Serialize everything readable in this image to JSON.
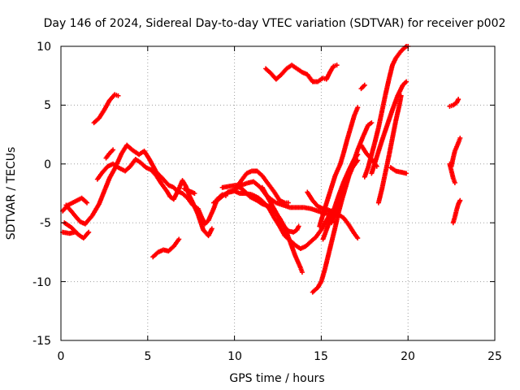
{
  "chart_data": {
    "type": "scatter",
    "title": "Day 146 of 2024, Sidereal Day-to-day VTEC variation (SDTVAR) for receiver p002",
    "xlabel": "GPS time / hours",
    "ylabel": "SDTVAR / TECUs",
    "xlim": [
      0,
      25
    ],
    "ylim": [
      -15,
      10
    ],
    "xticks": [
      "0",
      "5",
      "10",
      "15",
      "20",
      "25"
    ],
    "yticks": [
      "-15",
      "-10",
      "-5",
      "0",
      "5",
      "10"
    ],
    "grid": true,
    "marker": "+",
    "color": "#ff0000",
    "series": [
      {
        "values": [
          [
            0.1,
            -4.0
          ],
          [
            0.4,
            -3.5
          ],
          [
            0.8,
            -3.2
          ],
          [
            1.2,
            -2.9
          ],
          [
            1.5,
            -3.3
          ]
        ]
      },
      {
        "values": [
          [
            0.2,
            -5.0
          ],
          [
            0.6,
            -5.4
          ],
          [
            1.0,
            -6.0
          ],
          [
            1.3,
            -6.3
          ],
          [
            1.6,
            -5.8
          ]
        ]
      },
      {
        "values": [
          [
            0.1,
            -5.8
          ],
          [
            0.5,
            -5.9
          ],
          [
            0.8,
            -5.8
          ]
        ]
      },
      {
        "values": [
          [
            0.3,
            -3.5
          ],
          [
            0.7,
            -4.2
          ],
          [
            1.1,
            -4.9
          ],
          [
            1.4,
            -5.1
          ],
          [
            1.8,
            -4.4
          ],
          [
            2.2,
            -3.4
          ],
          [
            2.5,
            -2.3
          ],
          [
            2.8,
            -1.2
          ],
          [
            3.1,
            -0.4
          ],
          [
            3.5,
            0.9
          ],
          [
            3.8,
            1.6
          ],
          [
            4.1,
            1.2
          ],
          [
            4.5,
            0.8
          ],
          [
            4.8,
            1.1
          ],
          [
            5.1,
            0.4
          ],
          [
            5.5,
            -0.7
          ],
          [
            5.9,
            -1.3
          ],
          [
            6.2,
            -1.8
          ],
          [
            6.5,
            -2.0
          ],
          [
            6.7,
            -2.3
          ],
          [
            7.0,
            -2.5
          ],
          [
            7.3,
            -2.9
          ],
          [
            7.6,
            -3.5
          ],
          [
            7.9,
            -3.8
          ],
          [
            8.1,
            -4.5
          ],
          [
            8.3,
            -5.1
          ],
          [
            8.5,
            -4.8
          ],
          [
            8.8,
            -3.8
          ],
          [
            9.0,
            -3.0
          ],
          [
            9.3,
            -2.6
          ],
          [
            9.5,
            -2.7
          ]
        ]
      },
      {
        "values": [
          [
            2.1,
            -1.3
          ],
          [
            2.4,
            -0.7
          ],
          [
            2.7,
            -0.2
          ],
          [
            3.0,
            0.0
          ],
          [
            3.3,
            -0.3
          ],
          [
            3.7,
            -0.6
          ],
          [
            4.0,
            -0.2
          ],
          [
            4.3,
            0.4
          ],
          [
            4.6,
            0.1
          ],
          [
            4.9,
            -0.3
          ],
          [
            5.2,
            -0.5
          ],
          [
            5.5,
            -1.0
          ],
          [
            5.8,
            -1.7
          ],
          [
            6.1,
            -2.3
          ],
          [
            6.3,
            -2.8
          ],
          [
            6.5,
            -3.0
          ],
          [
            6.8,
            -2.1
          ],
          [
            7.0,
            -1.4
          ],
          [
            7.2,
            -1.9
          ],
          [
            7.4,
            -2.7
          ],
          [
            7.6,
            -3.3
          ],
          [
            7.9,
            -4.3
          ],
          [
            8.2,
            -5.6
          ],
          [
            8.5,
            -6.1
          ],
          [
            8.7,
            -5.5
          ]
        ]
      },
      {
        "values": [
          [
            2.6,
            0.5
          ],
          [
            2.8,
            0.9
          ],
          [
            3.0,
            1.2
          ]
        ]
      },
      {
        "values": [
          [
            1.9,
            3.5
          ],
          [
            2.2,
            3.9
          ],
          [
            2.5,
            4.6
          ],
          [
            2.8,
            5.4
          ],
          [
            3.1,
            5.9
          ],
          [
            3.3,
            5.8
          ]
        ]
      },
      {
        "values": [
          [
            5.3,
            -7.9
          ],
          [
            5.6,
            -7.5
          ],
          [
            5.9,
            -7.3
          ],
          [
            6.2,
            -7.4
          ],
          [
            6.5,
            -7.0
          ],
          [
            6.8,
            -6.4
          ]
        ]
      },
      {
        "values": [
          [
            7.1,
            -2.1
          ],
          [
            7.4,
            -2.3
          ],
          [
            7.7,
            -2.5
          ]
        ]
      },
      {
        "values": [
          [
            8.8,
            -3.3
          ],
          [
            9.1,
            -3.0
          ],
          [
            9.4,
            -2.6
          ],
          [
            9.7,
            -2.4
          ],
          [
            10.0,
            -2.3
          ],
          [
            10.3,
            -2.5
          ],
          [
            10.6,
            -2.5
          ],
          [
            11.0,
            -2.6
          ],
          [
            11.4,
            -2.9
          ],
          [
            11.7,
            -3.3
          ],
          [
            12.0,
            -3.8
          ],
          [
            12.3,
            -4.6
          ],
          [
            12.6,
            -5.3
          ],
          [
            12.9,
            -6.1
          ],
          [
            13.2,
            -6.5
          ],
          [
            13.5,
            -6.9
          ],
          [
            13.8,
            -7.2
          ],
          [
            14.1,
            -7.0
          ],
          [
            14.4,
            -6.6
          ],
          [
            14.7,
            -6.2
          ],
          [
            15.0,
            -5.6
          ],
          [
            15.3,
            -4.8
          ],
          [
            15.6,
            -4.0
          ]
        ]
      },
      {
        "values": [
          [
            9.3,
            -2.0
          ],
          [
            9.7,
            -1.9
          ],
          [
            10.1,
            -1.8
          ],
          [
            10.5,
            -2.2
          ],
          [
            10.9,
            -2.8
          ],
          [
            11.3,
            -3.1
          ],
          [
            11.6,
            -3.4
          ],
          [
            12.0,
            -3.6
          ],
          [
            12.3,
            -4.0
          ],
          [
            12.6,
            -4.6
          ],
          [
            12.9,
            -5.4
          ],
          [
            13.2,
            -6.6
          ],
          [
            13.5,
            -7.8
          ],
          [
            13.8,
            -8.8
          ],
          [
            13.9,
            -9.2
          ]
        ]
      },
      {
        "values": [
          [
            9.6,
            -2.4
          ],
          [
            10.0,
            -2.2
          ],
          [
            10.4,
            -1.8
          ],
          [
            10.8,
            -1.6
          ],
          [
            11.1,
            -1.5
          ],
          [
            11.5,
            -2.0
          ],
          [
            11.8,
            -2.6
          ],
          [
            12.1,
            -3.0
          ],
          [
            12.4,
            -3.3
          ],
          [
            12.8,
            -3.5
          ],
          [
            13.2,
            -3.7
          ],
          [
            13.6,
            -3.7
          ],
          [
            14.0,
            -3.7
          ],
          [
            14.4,
            -3.8
          ],
          [
            14.8,
            -4.0
          ],
          [
            15.2,
            -4.2
          ],
          [
            15.5,
            -4.2
          ],
          [
            15.8,
            -4.0
          ]
        ]
      },
      {
        "values": [
          [
            10.1,
            -2.0
          ],
          [
            10.4,
            -1.4
          ],
          [
            10.7,
            -0.8
          ],
          [
            11.0,
            -0.6
          ],
          [
            11.3,
            -0.6
          ],
          [
            11.6,
            -1.0
          ],
          [
            12.0,
            -1.8
          ],
          [
            12.3,
            -2.4
          ],
          [
            12.6,
            -3.1
          ],
          [
            12.9,
            -3.3
          ],
          [
            13.1,
            -3.3
          ]
        ]
      },
      {
        "values": [
          [
            11.6,
            -2.0
          ],
          [
            11.9,
            -2.8
          ],
          [
            12.2,
            -3.6
          ],
          [
            12.5,
            -4.4
          ],
          [
            12.8,
            -5.2
          ],
          [
            13.1,
            -5.7
          ],
          [
            13.4,
            -5.8
          ],
          [
            13.6,
            -5.6
          ],
          [
            13.7,
            -5.3
          ]
        ]
      },
      {
        "values": [
          [
            14.2,
            -2.4
          ],
          [
            14.5,
            -3.1
          ],
          [
            14.8,
            -3.6
          ],
          [
            15.1,
            -3.8
          ],
          [
            15.4,
            -3.9
          ],
          [
            15.7,
            -4.1
          ],
          [
            16.0,
            -4.3
          ],
          [
            16.3,
            -4.6
          ],
          [
            16.6,
            -5.2
          ],
          [
            16.9,
            -5.9
          ],
          [
            17.1,
            -6.3
          ]
        ]
      },
      {
        "values": [
          [
            11.8,
            8.1
          ],
          [
            12.1,
            7.7
          ],
          [
            12.4,
            7.2
          ],
          [
            12.7,
            7.6
          ],
          [
            13.0,
            8.1
          ],
          [
            13.3,
            8.4
          ],
          [
            13.6,
            8.1
          ],
          [
            13.9,
            7.8
          ],
          [
            14.2,
            7.6
          ],
          [
            14.5,
            7.0
          ],
          [
            14.8,
            7.0
          ],
          [
            15.1,
            7.3
          ],
          [
            15.3,
            7.2
          ],
          [
            15.5,
            7.8
          ],
          [
            15.7,
            8.3
          ],
          [
            15.9,
            8.4
          ]
        ]
      },
      {
        "values": [
          [
            14.5,
            -10.9
          ],
          [
            14.8,
            -10.5
          ],
          [
            15.0,
            -10.0
          ],
          [
            15.2,
            -9.0
          ],
          [
            15.4,
            -7.8
          ],
          [
            15.6,
            -6.6
          ],
          [
            15.8,
            -5.4
          ],
          [
            16.0,
            -4.1
          ],
          [
            16.2,
            -3.0
          ],
          [
            16.4,
            -2.0
          ],
          [
            16.6,
            -1.0
          ],
          [
            16.8,
            -0.3
          ],
          [
            17.1,
            0.3
          ]
        ]
      },
      {
        "values": [
          [
            14.9,
            -5.3
          ],
          [
            15.2,
            -3.8
          ],
          [
            15.5,
            -2.4
          ],
          [
            15.8,
            -1.0
          ],
          [
            16.1,
            0.0
          ],
          [
            16.3,
            1.0
          ],
          [
            16.5,
            2.1
          ],
          [
            16.7,
            3.1
          ],
          [
            16.9,
            4.1
          ],
          [
            17.1,
            4.8
          ]
        ]
      },
      {
        "values": [
          [
            15.1,
            -6.4
          ],
          [
            15.4,
            -5.2
          ],
          [
            15.7,
            -4.0
          ],
          [
            16.0,
            -2.7
          ],
          [
            16.3,
            -1.5
          ],
          [
            16.6,
            -0.5
          ],
          [
            16.9,
            0.4
          ],
          [
            17.1,
            0.8
          ]
        ]
      },
      {
        "values": [
          [
            15.6,
            -5.0
          ],
          [
            15.9,
            -3.8
          ],
          [
            16.2,
            -2.6
          ],
          [
            16.5,
            -1.3
          ],
          [
            16.8,
            -0.1
          ],
          [
            17.1,
            1.2
          ],
          [
            17.4,
            2.3
          ],
          [
            17.7,
            3.3
          ],
          [
            17.9,
            3.5
          ]
        ]
      },
      {
        "values": [
          [
            17.3,
            6.4
          ],
          [
            17.5,
            6.7
          ]
        ]
      },
      {
        "values": [
          [
            17.3,
            1.6
          ],
          [
            17.6,
            0.9
          ],
          [
            17.9,
            0.4
          ],
          [
            18.2,
            -0.2
          ]
        ]
      },
      {
        "values": [
          [
            17.5,
            -1.1
          ],
          [
            17.7,
            -0.3
          ],
          [
            17.9,
            0.8
          ],
          [
            18.1,
            1.9
          ],
          [
            18.3,
            3.1
          ],
          [
            18.5,
            4.5
          ],
          [
            18.7,
            5.9
          ],
          [
            18.9,
            7.2
          ],
          [
            19.1,
            8.4
          ],
          [
            19.3,
            9.0
          ],
          [
            19.6,
            9.6
          ],
          [
            19.9,
            10.0
          ],
          [
            20.0,
            10.0
          ]
        ]
      },
      {
        "values": [
          [
            17.9,
            -0.8
          ],
          [
            18.2,
            0.6
          ],
          [
            18.5,
            2.0
          ],
          [
            18.8,
            3.3
          ],
          [
            19.1,
            4.6
          ],
          [
            19.4,
            5.8
          ],
          [
            19.7,
            6.7
          ],
          [
            19.9,
            7.0
          ]
        ]
      },
      {
        "values": [
          [
            18.3,
            -3.3
          ],
          [
            18.5,
            -2.1
          ],
          [
            18.7,
            -0.7
          ],
          [
            18.9,
            0.7
          ],
          [
            19.1,
            2.2
          ],
          [
            19.3,
            3.7
          ],
          [
            19.5,
            5.0
          ],
          [
            19.6,
            5.8
          ]
        ]
      },
      {
        "values": [
          [
            19.0,
            -0.3
          ],
          [
            19.3,
            -0.6
          ],
          [
            19.6,
            -0.7
          ],
          [
            19.9,
            -0.8
          ]
        ]
      },
      {
        "values": [
          [
            22.4,
            4.9
          ],
          [
            22.6,
            5.0
          ],
          [
            22.8,
            5.2
          ],
          [
            22.9,
            5.5
          ]
        ]
      },
      {
        "values": [
          [
            22.4,
            0.0
          ],
          [
            22.5,
            -0.6
          ],
          [
            22.6,
            -1.2
          ],
          [
            22.7,
            -1.6
          ]
        ]
      },
      {
        "values": [
          [
            22.5,
            -0.2
          ],
          [
            22.6,
            0.5
          ],
          [
            22.7,
            1.1
          ],
          [
            22.9,
            1.8
          ],
          [
            23.0,
            2.2
          ]
        ]
      },
      {
        "values": [
          [
            22.6,
            -5.0
          ],
          [
            22.7,
            -4.5
          ],
          [
            22.8,
            -3.9
          ],
          [
            22.9,
            -3.4
          ],
          [
            23.0,
            -3.1
          ]
        ]
      }
    ]
  }
}
